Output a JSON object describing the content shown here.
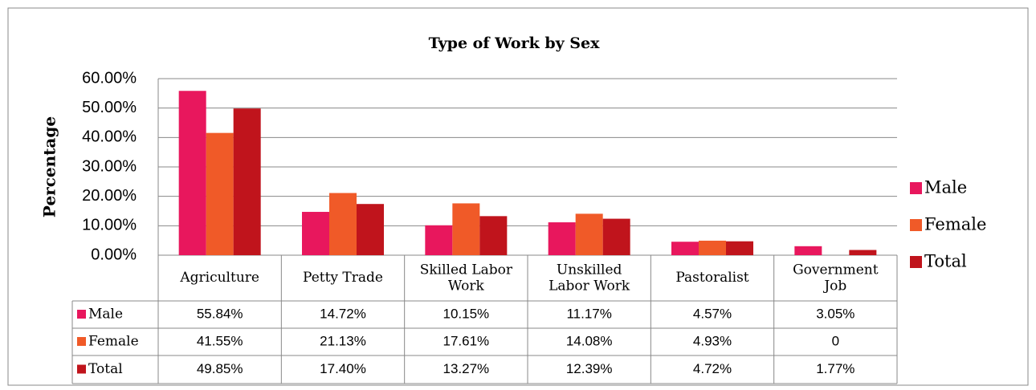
{
  "chart_data": {
    "type": "bar",
    "title": "Type of Work by Sex",
    "y_label": "Percentage",
    "categories": [
      "Agriculture",
      "Petty Trade",
      "Skilled Labor Work",
      "Unskilled Labor Work",
      "Pastoralist",
      "Government Job"
    ],
    "series": [
      {
        "name": "Male",
        "color": "#e8175d",
        "values": [
          55.84,
          14.72,
          10.15,
          11.17,
          4.57,
          3.05
        ],
        "value_labels": [
          "55.84%",
          "14.72%",
          "10.15%",
          "11.17%",
          "4.57%",
          "3.05%"
        ]
      },
      {
        "name": "Female",
        "color": "#f05a28",
        "values": [
          41.55,
          21.13,
          17.61,
          14.08,
          4.93,
          0
        ],
        "value_labels": [
          "41.55%",
          "21.13%",
          "17.61%",
          "14.08%",
          "4.93%",
          "0"
        ]
      },
      {
        "name": "Total",
        "color": "#c0141c",
        "values": [
          49.85,
          17.4,
          13.27,
          12.39,
          4.72,
          1.77
        ],
        "value_labels": [
          "49.85%",
          "17.40%",
          "13.27%",
          "12.39%",
          "4.72%",
          "1.77%"
        ]
      }
    ],
    "ylim": [
      0,
      60
    ],
    "yticks": [
      {
        "value": 0,
        "label": "0.00%"
      },
      {
        "value": 10,
        "label": "10.00%"
      },
      {
        "value": 20,
        "label": "20.00%"
      },
      {
        "value": 30,
        "label": "30.00%"
      },
      {
        "value": 40,
        "label": "40.00%"
      },
      {
        "value": 50,
        "label": "50.00%"
      },
      {
        "value": 60,
        "label": "60.00%"
      }
    ],
    "grid": true,
    "legend": "right",
    "data_table": true
  }
}
